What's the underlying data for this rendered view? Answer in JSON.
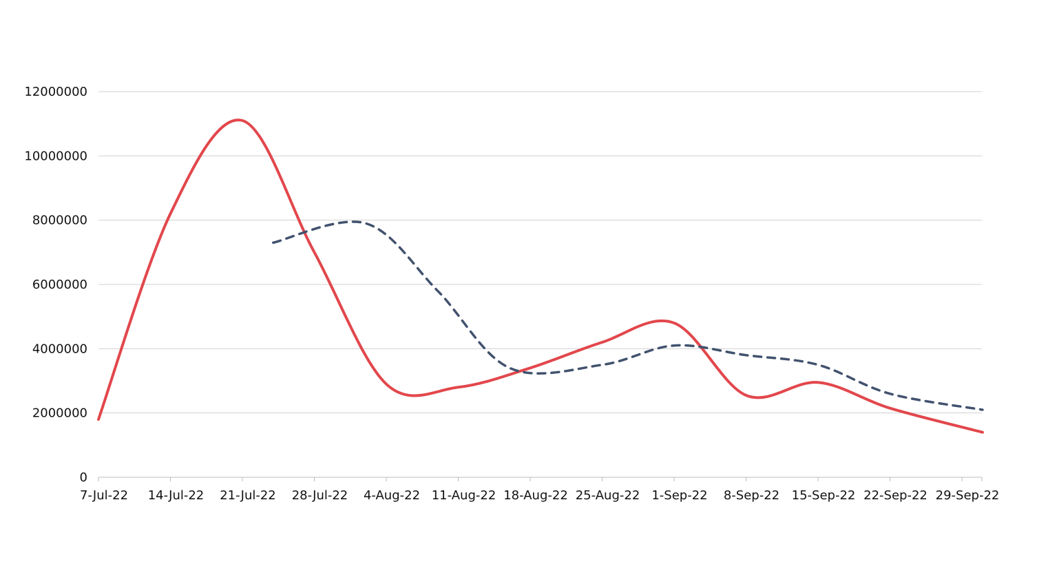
{
  "chart_data": {
    "type": "line",
    "title": "",
    "xlabel": "",
    "ylabel": "",
    "x_tick_labels": [
      "7-Jul-22",
      "14-Jul-22",
      "21-Jul-22",
      "28-Jul-22",
      "4-Aug-22",
      "11-Aug-22",
      "18-Aug-22",
      "25-Aug-22",
      "1-Sep-22",
      "8-Sep-22",
      "15-Sep-22",
      "22-Sep-22",
      "29-Sep-22"
    ],
    "y_tick_labels": [
      "0",
      "2000000",
      "4000000",
      "6000000",
      "8000000",
      "10000000",
      "12000000"
    ],
    "ylim": [
      0,
      12000000
    ],
    "xlim": [
      "2022-07-07",
      "2022-10-01"
    ],
    "grid": true,
    "legend": false,
    "series": [
      {
        "color": "#e2474c",
        "dash": "solid",
        "points": [
          [
            "2022-07-07",
            1800000
          ],
          [
            "2022-07-14",
            8200000
          ],
          [
            "2022-07-21",
            11100000
          ],
          [
            "2022-07-28",
            7000000
          ],
          [
            "2022-08-04",
            2900000
          ],
          [
            "2022-08-11",
            2800000
          ],
          [
            "2022-08-18",
            3400000
          ],
          [
            "2022-08-25",
            4200000
          ],
          [
            "2022-09-01",
            4800000
          ],
          [
            "2022-09-08",
            2550000
          ],
          [
            "2022-09-15",
            2950000
          ],
          [
            "2022-09-22",
            2150000
          ],
          [
            "2022-10-01",
            1400000
          ]
        ]
      },
      {
        "color": "#42526e",
        "dash": "dashed",
        "points": [
          [
            "2022-07-24",
            7300000
          ],
          [
            "2022-08-02",
            7900000
          ],
          [
            "2022-08-09",
            5800000
          ],
          [
            "2022-08-16",
            3400000
          ],
          [
            "2022-08-25",
            3500000
          ],
          [
            "2022-09-01",
            4100000
          ],
          [
            "2022-09-08",
            3800000
          ],
          [
            "2022-09-15",
            3500000
          ],
          [
            "2022-09-22",
            2600000
          ],
          [
            "2022-10-01",
            2100000
          ]
        ]
      }
    ]
  }
}
